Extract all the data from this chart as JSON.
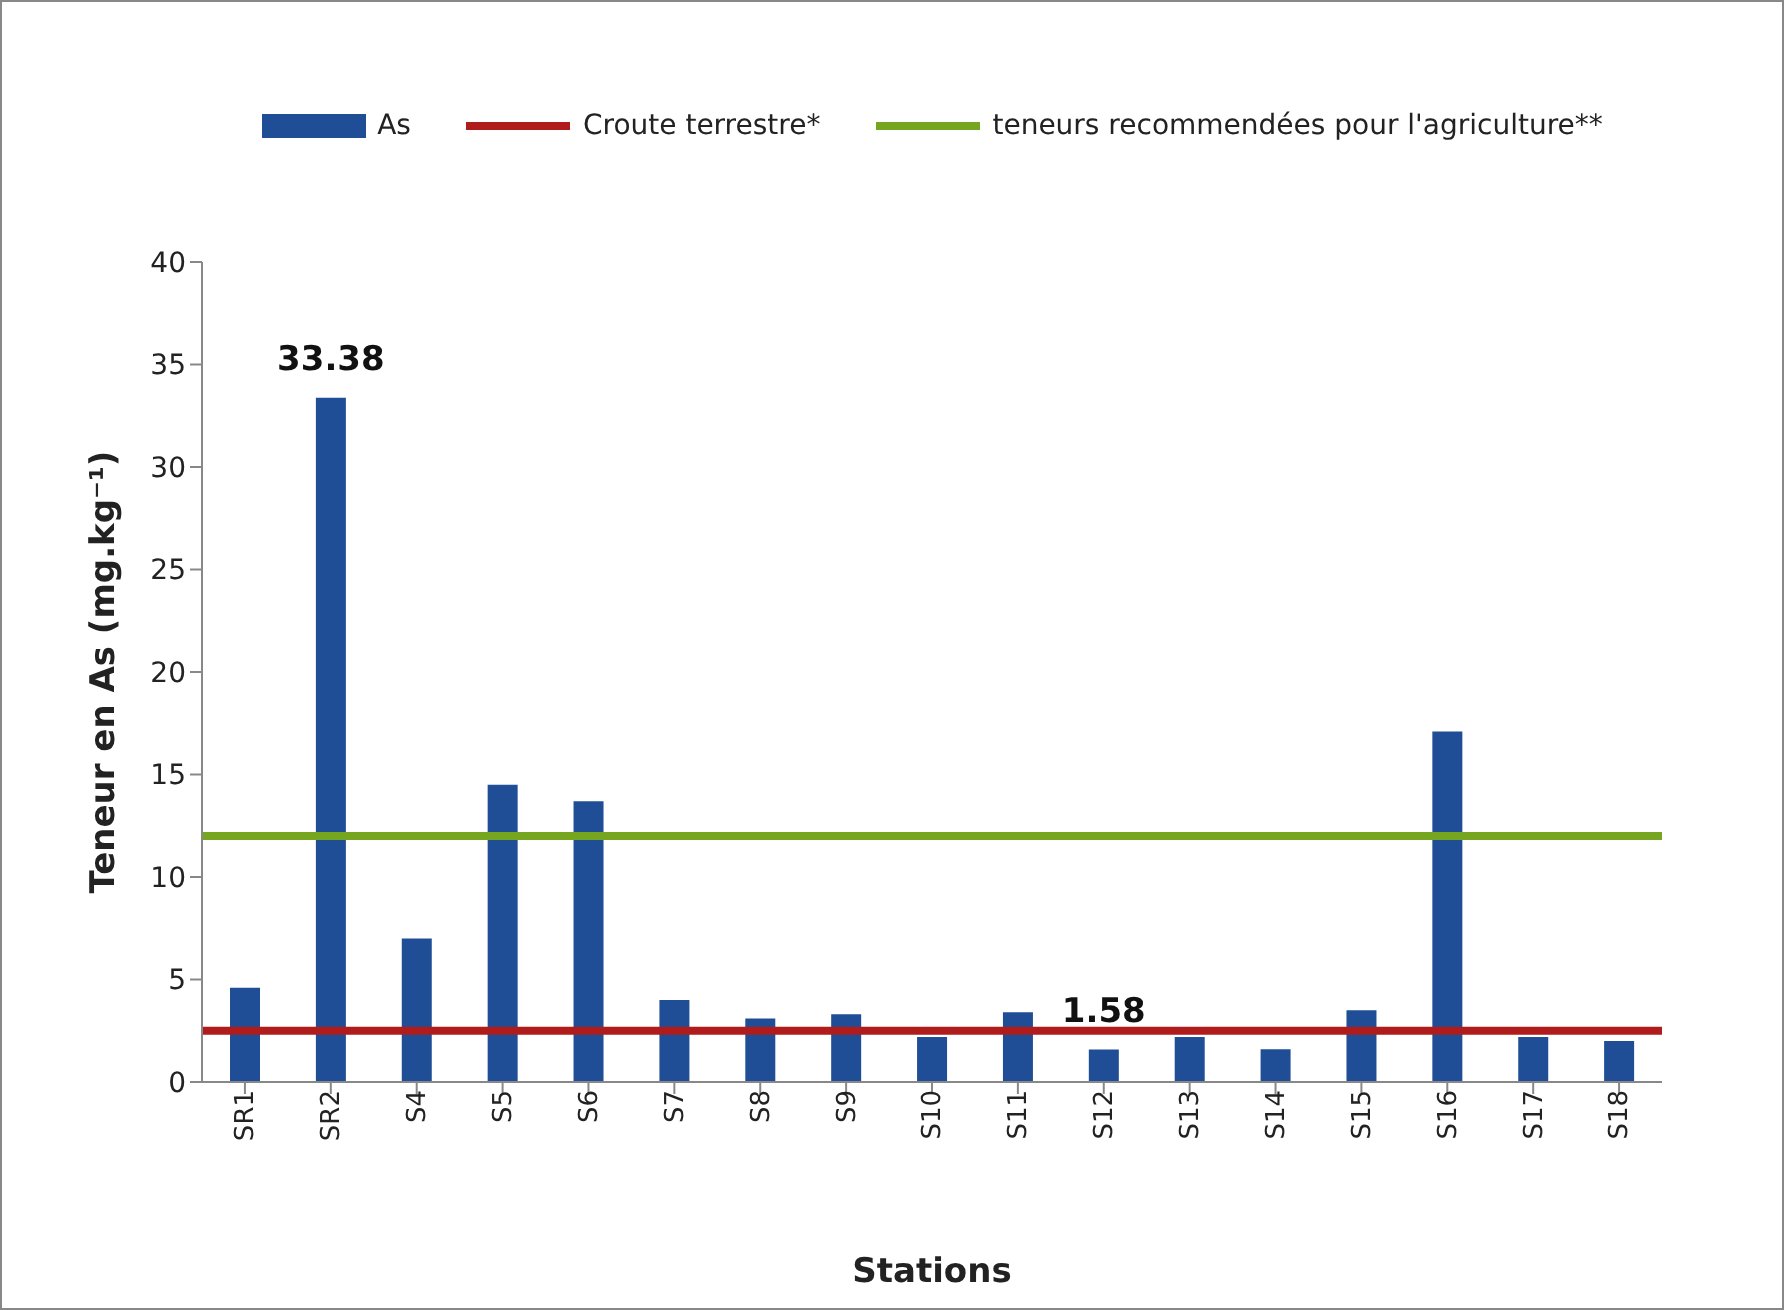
{
  "chart_data": {
    "type": "bar",
    "xlabel": "Stations",
    "ylabel": "Teneur en As (mg.kg⁻¹)",
    "categories": [
      "SR1",
      "SR2",
      "S4",
      "S5",
      "S6",
      "S7",
      "S8",
      "S9",
      "S10",
      "S11",
      "S12",
      "S13",
      "S14",
      "S15",
      "S16",
      "S17",
      "S18"
    ],
    "series": [
      {
        "name": "As",
        "color": "#1f4e96",
        "values": [
          4.6,
          33.38,
          7.0,
          14.5,
          13.7,
          4.0,
          3.1,
          3.3,
          2.2,
          3.4,
          1.58,
          2.2,
          1.6,
          3.5,
          17.1,
          2.2,
          2.0
        ],
        "value_labels": [
          null,
          "33.38",
          null,
          null,
          null,
          null,
          null,
          null,
          null,
          null,
          "1.58",
          null,
          null,
          null,
          null,
          null,
          null
        ]
      }
    ],
    "ref_lines": [
      {
        "axis": "y",
        "value": 2.5,
        "label": "Croute terrestre*",
        "color": "#b01c1c"
      },
      {
        "axis": "y",
        "value": 12,
        "label": "teneurs recommendées pour l'agriculture**",
        "color": "#76a520"
      }
    ],
    "ylim": [
      0,
      40
    ],
    "yticks": [
      0,
      5,
      10,
      15,
      20,
      25,
      30,
      35,
      40
    ],
    "grid": false,
    "legend": "top"
  }
}
